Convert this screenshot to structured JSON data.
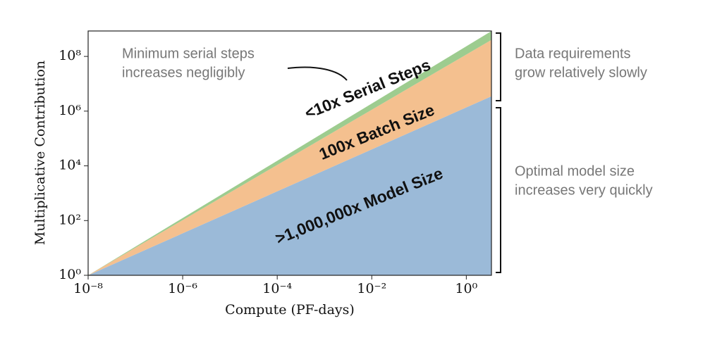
{
  "chart_data": {
    "type": "stacked-area",
    "xscale": "log",
    "yscale": "log",
    "x_label": "Compute (PF-days)",
    "y_label": "Multiplicative Contribution",
    "x": [
      1e-08,
      3.4
    ],
    "series": [
      {
        "name": ">1,000,000x Model Size",
        "color": "#9bbad8",
        "values": [
          1,
          3500000
        ]
      },
      {
        "name": "100x Batch Size",
        "color": "#f4c08f",
        "values": [
          1,
          115
        ]
      },
      {
        "name": "<10x Serial Steps",
        "color": "#9dcc8f",
        "values": [
          1,
          2.1
        ]
      }
    ],
    "xlim": [
      1e-08,
      3.4
    ],
    "ylim": [
      1,
      850000000
    ],
    "xticks": [
      {
        "value": 1e-08,
        "label": "10⁻⁸"
      },
      {
        "value": 1e-06,
        "label": "10⁻⁶"
      },
      {
        "value": 0.0001,
        "label": "10⁻⁴"
      },
      {
        "value": 0.01,
        "label": "10⁻²"
      },
      {
        "value": 1,
        "label": "10⁰"
      }
    ],
    "yticks": [
      {
        "value": 1,
        "label": "10⁰"
      },
      {
        "value": 100,
        "label": "10²"
      },
      {
        "value": 10000,
        "label": "10⁴"
      },
      {
        "value": 1000000,
        "label": "10⁶"
      },
      {
        "value": 100000000,
        "label": "10⁸"
      }
    ],
    "annotations": [
      {
        "lines": [
          "Minimum serial steps",
          "increases negligibly"
        ]
      },
      {
        "lines": [
          "Data requirements",
          "grow relatively slowly"
        ]
      },
      {
        "lines": [
          "Optimal model size",
          "increases very quickly"
        ]
      }
    ]
  }
}
